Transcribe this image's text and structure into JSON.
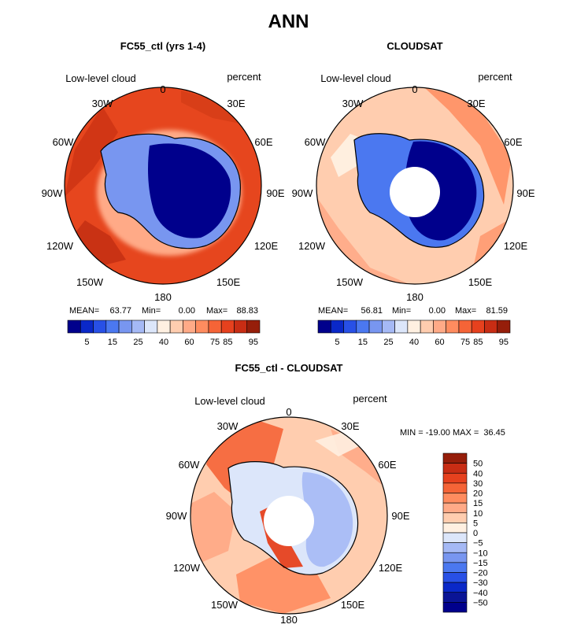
{
  "title": "ANN",
  "chart_data": [
    {
      "type": "heatmap",
      "projection": "south-polar-stereographic",
      "title": "FC55_ctl (yrs 1-4)",
      "field_label": "Low-level cloud",
      "units": "percent",
      "stats": {
        "mean_label": "MEAN=",
        "mean": "63.77",
        "min_label": "Min=",
        "min": "0.00",
        "max_label": "Max=",
        "max": "88.83"
      },
      "longitude_labels": [
        "0",
        "30E",
        "60E",
        "90E",
        "120E",
        "150E",
        "180",
        "150W",
        "120W",
        "90W",
        "60W",
        "30W"
      ],
      "colorbar": {
        "tick_labels": [
          "5",
          "15",
          "25",
          "40",
          "60",
          "75",
          "85",
          "95"
        ],
        "colors": [
          "#00008c",
          "#0a28c8",
          "#2850e6",
          "#4b78f0",
          "#7896f0",
          "#a5b9f5",
          "#dce6fa",
          "#fff0e1",
          "#ffcdaf",
          "#ffaa87",
          "#ff8c5f",
          "#f56437",
          "#e6411e",
          "#c82d14",
          "#961e0a"
        ]
      },
      "field_summary": {
        "ocean_value": 80,
        "antarctica_interior_value": 3,
        "coastal_value": 40
      }
    },
    {
      "type": "heatmap",
      "projection": "south-polar-stereographic",
      "title": "CLOUDSAT",
      "field_label": "Low-level cloud",
      "units": "percent",
      "stats": {
        "mean_label": "MEAN=",
        "mean": "56.81",
        "min_label": "Min=",
        "min": "0.00",
        "max_label": "Max=",
        "max": "81.59"
      },
      "longitude_labels": [
        "0",
        "30E",
        "60E",
        "90E",
        "120E",
        "150E",
        "180",
        "150W",
        "120W",
        "90W",
        "60W",
        "30W"
      ],
      "colorbar": {
        "tick_labels": [
          "5",
          "15",
          "25",
          "40",
          "60",
          "75",
          "85",
          "95"
        ],
        "colors": [
          "#00008c",
          "#0a28c8",
          "#2850e6",
          "#4b78f0",
          "#7896f0",
          "#a5b9f5",
          "#dce6fa",
          "#fff0e1",
          "#ffcdaf",
          "#ffaa87",
          "#ff8c5f",
          "#f56437",
          "#e6411e",
          "#c82d14",
          "#961e0a"
        ]
      },
      "field_summary": {
        "ocean_value": 65,
        "antarctica_interior_value": 3,
        "coastal_value": 40,
        "missing_polar_cap": true
      }
    },
    {
      "type": "heatmap",
      "projection": "south-polar-stereographic",
      "title": "FC55_ctl - CLOUDSAT",
      "field_label": "Low-level cloud",
      "units": "percent",
      "range_text": "MIN = -19.00 MAX =  36.45",
      "min": -19.0,
      "max": 36.45,
      "longitude_labels": [
        "0",
        "30E",
        "60E",
        "90E",
        "120E",
        "150E",
        "180",
        "150W",
        "120W",
        "90W",
        "60W",
        "30W"
      ],
      "colorbar": {
        "tick_labels": [
          "50",
          "40",
          "30",
          "20",
          "15",
          "10",
          "5",
          "0",
          "−5",
          "−10",
          "−15",
          "−20",
          "−30",
          "−40",
          "−50"
        ],
        "colors": [
          "#961e0a",
          "#c82d14",
          "#e6411e",
          "#f56437",
          "#ff8c5f",
          "#ffaa87",
          "#ffcdaf",
          "#fff0e1",
          "#dce6fa",
          "#a5b9f5",
          "#7896f0",
          "#4b78f0",
          "#2850e6",
          "#0a28c8",
          "#0a1496",
          "#00008c"
        ]
      },
      "field_summary": {
        "ocean_value": 15,
        "antarctica_interior_value": 0,
        "coastal_value": -10,
        "missing_polar_cap": true
      }
    }
  ]
}
